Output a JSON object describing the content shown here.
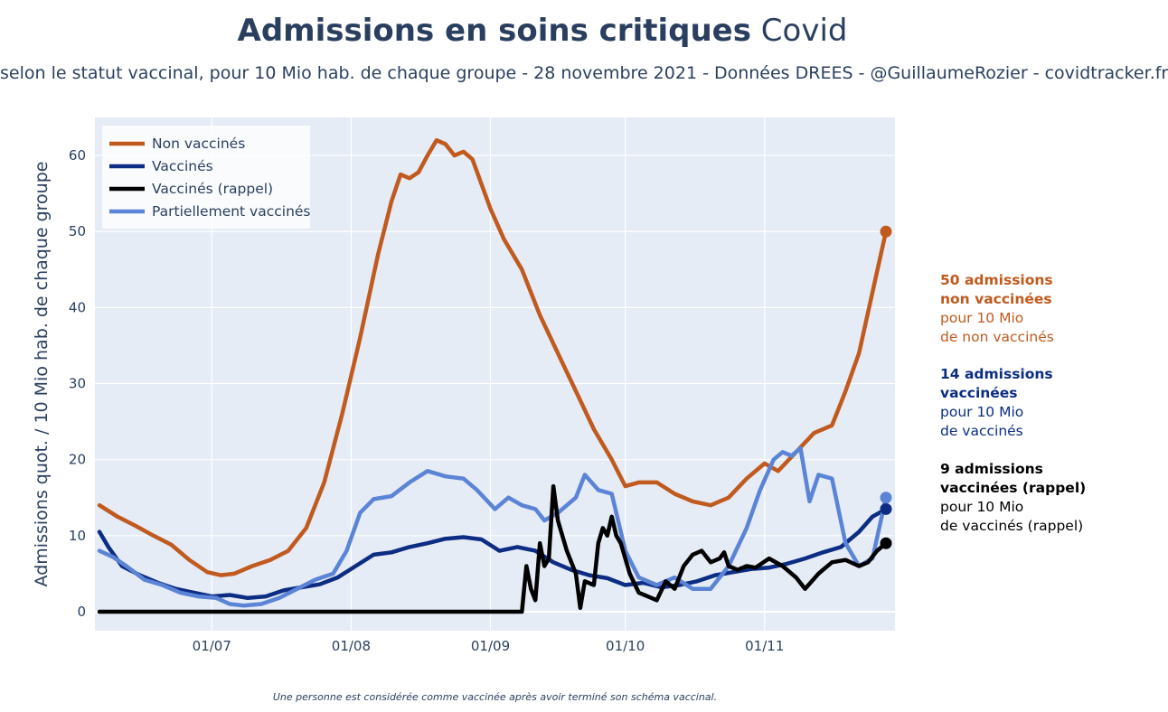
{
  "header": {
    "title_bold": "Admissions en soins critiques",
    "title_rest": " Covid",
    "subtitle": "selon le statut vaccinal, pour 10 Mio hab. de chaque groupe - 28 novembre 2021 - Données DREES - @GuillaumeRozier - covidtracker.fr"
  },
  "footnote": "Une personne est considérée comme vaccinée après avoir terminé son schéma vaccinal.",
  "annotations": [
    {
      "strong1": "50 admissions",
      "strong2": "non vaccinées",
      "line3": "pour 10 Mio",
      "line4": "de non vaccinés",
      "color": "#c05a1e"
    },
    {
      "strong1": "14 admissions",
      "strong2": "vaccinées",
      "line3": "pour 10 Mio",
      "line4": "de vaccinés",
      "color": "#0c2d83"
    },
    {
      "strong1": "9 admissions",
      "strong2": "vaccinées (rappel)",
      "line3": "pour 10 Mio",
      "line4": "de vaccinés (rappel)",
      "color": "#000000"
    }
  ],
  "chart_data": {
    "type": "line",
    "ylabel": "Admissions quot. / 10 Mio hab. de chaque groupe",
    "xlabel": "",
    "xlim": [
      "2021-06-06",
      "2021-11-28"
    ],
    "ylim": [
      -2.5,
      65
    ],
    "grid": true,
    "legend_position": "top-left",
    "x_ticks": [
      {
        "date": "2021-07-01",
        "label": "01/07"
      },
      {
        "date": "2021-08-01",
        "label": "01/08"
      },
      {
        "date": "2021-09-01",
        "label": "01/09"
      },
      {
        "date": "2021-10-01",
        "label": "01/10"
      },
      {
        "date": "2021-11-01",
        "label": "01/11"
      }
    ],
    "y_ticks": [
      0,
      10,
      20,
      30,
      40,
      50,
      60
    ],
    "series": [
      {
        "name": "Non vaccinés",
        "color": "#c05a1e",
        "end_marker": true,
        "points": [
          [
            "2021-06-06",
            14
          ],
          [
            "2021-06-10",
            12.5
          ],
          [
            "2021-06-14",
            11.3
          ],
          [
            "2021-06-18",
            10
          ],
          [
            "2021-06-22",
            8.8
          ],
          [
            "2021-06-26",
            6.8
          ],
          [
            "2021-06-30",
            5.2
          ],
          [
            "2021-07-03",
            4.8
          ],
          [
            "2021-07-06",
            5
          ],
          [
            "2021-07-10",
            6
          ],
          [
            "2021-07-14",
            6.8
          ],
          [
            "2021-07-18",
            8
          ],
          [
            "2021-07-22",
            11
          ],
          [
            "2021-07-26",
            17
          ],
          [
            "2021-07-30",
            26
          ],
          [
            "2021-08-03",
            36
          ],
          [
            "2021-08-07",
            47
          ],
          [
            "2021-08-10",
            54
          ],
          [
            "2021-08-12",
            57.5
          ],
          [
            "2021-08-14",
            57
          ],
          [
            "2021-08-16",
            57.8
          ],
          [
            "2021-08-18",
            60
          ],
          [
            "2021-08-20",
            62
          ],
          [
            "2021-08-22",
            61.5
          ],
          [
            "2021-08-24",
            60
          ],
          [
            "2021-08-26",
            60.5
          ],
          [
            "2021-08-28",
            59.5
          ],
          [
            "2021-09-01",
            53
          ],
          [
            "2021-09-04",
            49
          ],
          [
            "2021-09-08",
            45
          ],
          [
            "2021-09-12",
            39
          ],
          [
            "2021-09-16",
            34
          ],
          [
            "2021-09-20",
            29
          ],
          [
            "2021-09-24",
            24
          ],
          [
            "2021-09-28",
            20
          ],
          [
            "2021-10-01",
            16.5
          ],
          [
            "2021-10-04",
            17
          ],
          [
            "2021-10-08",
            17
          ],
          [
            "2021-10-12",
            15.5
          ],
          [
            "2021-10-16",
            14.5
          ],
          [
            "2021-10-20",
            14
          ],
          [
            "2021-10-24",
            15
          ],
          [
            "2021-10-28",
            17.5
          ],
          [
            "2021-11-01",
            19.5
          ],
          [
            "2021-11-04",
            18.5
          ],
          [
            "2021-11-08",
            21
          ],
          [
            "2021-11-12",
            23.5
          ],
          [
            "2021-11-16",
            24.5
          ],
          [
            "2021-11-19",
            29
          ],
          [
            "2021-11-22",
            34
          ],
          [
            "2021-11-25",
            42
          ],
          [
            "2021-11-28",
            50
          ]
        ]
      },
      {
        "name": "Vaccinés",
        "color": "#0c2d83",
        "end_marker": true,
        "points": [
          [
            "2021-06-06",
            10.5
          ],
          [
            "2021-06-08",
            8.5
          ],
          [
            "2021-06-11",
            6
          ],
          [
            "2021-06-15",
            4.8
          ],
          [
            "2021-06-19",
            3.8
          ],
          [
            "2021-06-23",
            3
          ],
          [
            "2021-06-27",
            2.5
          ],
          [
            "2021-07-01",
            2
          ],
          [
            "2021-07-05",
            2.2
          ],
          [
            "2021-07-09",
            1.8
          ],
          [
            "2021-07-13",
            2
          ],
          [
            "2021-07-17",
            2.8
          ],
          [
            "2021-07-21",
            3.2
          ],
          [
            "2021-07-25",
            3.6
          ],
          [
            "2021-07-29",
            4.5
          ],
          [
            "2021-08-02",
            6
          ],
          [
            "2021-08-06",
            7.5
          ],
          [
            "2021-08-10",
            7.8
          ],
          [
            "2021-08-14",
            8.5
          ],
          [
            "2021-08-18",
            9
          ],
          [
            "2021-08-22",
            9.6
          ],
          [
            "2021-08-26",
            9.8
          ],
          [
            "2021-08-30",
            9.5
          ],
          [
            "2021-09-03",
            8
          ],
          [
            "2021-09-07",
            8.5
          ],
          [
            "2021-09-11",
            8
          ],
          [
            "2021-09-15",
            6.5
          ],
          [
            "2021-09-19",
            5.5
          ],
          [
            "2021-09-23",
            4.8
          ],
          [
            "2021-09-27",
            4.4
          ],
          [
            "2021-10-01",
            3.5
          ],
          [
            "2021-10-05",
            3.8
          ],
          [
            "2021-10-09",
            3.2
          ],
          [
            "2021-10-13",
            3.5
          ],
          [
            "2021-10-17",
            4
          ],
          [
            "2021-10-21",
            4.8
          ],
          [
            "2021-10-25",
            5.2
          ],
          [
            "2021-10-29",
            5.6
          ],
          [
            "2021-11-02",
            5.8
          ],
          [
            "2021-11-06",
            6.3
          ],
          [
            "2021-11-10",
            7
          ],
          [
            "2021-11-14",
            7.8
          ],
          [
            "2021-11-18",
            8.5
          ],
          [
            "2021-11-22",
            10.5
          ],
          [
            "2021-11-25",
            12.5
          ],
          [
            "2021-11-28",
            13.5
          ]
        ]
      },
      {
        "name": "Vaccinés (rappel)",
        "color": "#000000",
        "end_marker": true,
        "points": [
          [
            "2021-06-06",
            0
          ],
          [
            "2021-09-08",
            0
          ],
          [
            "2021-09-09",
            6
          ],
          [
            "2021-09-10",
            3
          ],
          [
            "2021-09-11",
            1.5
          ],
          [
            "2021-09-12",
            9
          ],
          [
            "2021-09-13",
            6
          ],
          [
            "2021-09-14",
            7
          ],
          [
            "2021-09-15",
            16.5
          ],
          [
            "2021-09-16",
            12
          ],
          [
            "2021-09-18",
            8
          ],
          [
            "2021-09-20",
            5
          ],
          [
            "2021-09-21",
            0.5
          ],
          [
            "2021-09-22",
            4
          ],
          [
            "2021-09-24",
            3.5
          ],
          [
            "2021-09-25",
            9
          ],
          [
            "2021-09-26",
            11
          ],
          [
            "2021-09-27",
            10
          ],
          [
            "2021-09-28",
            12.5
          ],
          [
            "2021-09-29",
            10
          ],
          [
            "2021-09-30",
            9
          ],
          [
            "2021-10-02",
            5
          ],
          [
            "2021-10-04",
            2.5
          ],
          [
            "2021-10-06",
            2
          ],
          [
            "2021-10-08",
            1.5
          ],
          [
            "2021-10-10",
            4
          ],
          [
            "2021-10-12",
            3
          ],
          [
            "2021-10-14",
            6
          ],
          [
            "2021-10-16",
            7.5
          ],
          [
            "2021-10-18",
            8
          ],
          [
            "2021-10-20",
            6.5
          ],
          [
            "2021-10-22",
            7
          ],
          [
            "2021-10-23",
            7.8
          ],
          [
            "2021-10-24",
            6
          ],
          [
            "2021-10-26",
            5.5
          ],
          [
            "2021-10-28",
            6
          ],
          [
            "2021-10-30",
            5.8
          ],
          [
            "2021-11-02",
            7
          ],
          [
            "2021-11-05",
            6
          ],
          [
            "2021-11-08",
            4.5
          ],
          [
            "2021-11-10",
            3
          ],
          [
            "2021-11-13",
            5
          ],
          [
            "2021-11-16",
            6.5
          ],
          [
            "2021-11-19",
            6.8
          ],
          [
            "2021-11-22",
            6
          ],
          [
            "2021-11-24",
            6.5
          ],
          [
            "2021-11-26",
            8
          ],
          [
            "2021-11-28",
            9
          ]
        ]
      },
      {
        "name": "Partiellement vaccinés",
        "color": "#5b84d6",
        "end_marker": true,
        "points": [
          [
            "2021-06-06",
            8
          ],
          [
            "2021-06-09",
            7.2
          ],
          [
            "2021-06-12",
            6
          ],
          [
            "2021-06-16",
            4.2
          ],
          [
            "2021-06-20",
            3.5
          ],
          [
            "2021-06-24",
            2.5
          ],
          [
            "2021-06-28",
            2
          ],
          [
            "2021-07-02",
            1.8
          ],
          [
            "2021-07-05",
            1
          ],
          [
            "2021-07-08",
            0.8
          ],
          [
            "2021-07-12",
            1
          ],
          [
            "2021-07-16",
            1.8
          ],
          [
            "2021-07-20",
            3
          ],
          [
            "2021-07-24",
            4.2
          ],
          [
            "2021-07-28",
            5
          ],
          [
            "2021-07-31",
            8
          ],
          [
            "2021-08-03",
            13
          ],
          [
            "2021-08-06",
            14.8
          ],
          [
            "2021-08-10",
            15.2
          ],
          [
            "2021-08-14",
            17
          ],
          [
            "2021-08-18",
            18.5
          ],
          [
            "2021-08-22",
            17.8
          ],
          [
            "2021-08-26",
            17.5
          ],
          [
            "2021-08-29",
            16
          ],
          [
            "2021-09-02",
            13.5
          ],
          [
            "2021-09-05",
            15
          ],
          [
            "2021-09-08",
            14
          ],
          [
            "2021-09-11",
            13.5
          ],
          [
            "2021-09-13",
            12
          ],
          [
            "2021-09-16",
            13
          ],
          [
            "2021-09-20",
            15
          ],
          [
            "2021-09-22",
            18
          ],
          [
            "2021-09-25",
            16
          ],
          [
            "2021-09-28",
            15.5
          ],
          [
            "2021-10-01",
            8
          ],
          [
            "2021-10-04",
            4.5
          ],
          [
            "2021-10-08",
            3.5
          ],
          [
            "2021-10-12",
            4.5
          ],
          [
            "2021-10-16",
            3
          ],
          [
            "2021-10-20",
            3
          ],
          [
            "2021-10-24",
            6
          ],
          [
            "2021-10-28",
            11
          ],
          [
            "2021-10-31",
            16
          ],
          [
            "2021-11-03",
            20
          ],
          [
            "2021-11-05",
            21
          ],
          [
            "2021-11-07",
            20.5
          ],
          [
            "2021-11-09",
            21.5
          ],
          [
            "2021-11-11",
            14.5
          ],
          [
            "2021-11-13",
            18
          ],
          [
            "2021-11-16",
            17.5
          ],
          [
            "2021-11-19",
            9
          ],
          [
            "2021-11-22",
            6
          ],
          [
            "2021-11-25",
            7
          ],
          [
            "2021-11-28",
            15
          ]
        ]
      }
    ]
  }
}
